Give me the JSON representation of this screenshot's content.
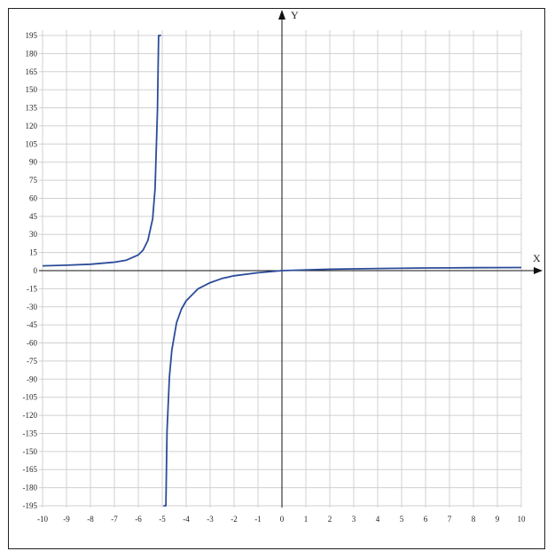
{
  "chart_data": {
    "type": "line",
    "title": "",
    "xlabel": "X",
    "ylabel": "Y",
    "xlim": [
      -10,
      10
    ],
    "ylim": [
      -195,
      195
    ],
    "grid": true,
    "x_ticks": [
      -10,
      -9,
      -8,
      -7,
      -6,
      -5,
      -4,
      -3,
      -2,
      -1,
      0,
      1,
      2,
      3,
      4,
      5,
      6,
      7,
      8,
      9,
      10
    ],
    "x_tick_labels": [
      "-10",
      "-9",
      "-8",
      "-7",
      "-6",
      "-5",
      "-4",
      "-3",
      "-2",
      "-1",
      "0",
      "1",
      "2",
      "3",
      "4",
      "5",
      "6",
      "7",
      "8",
      "9",
      "10"
    ],
    "y_ticks": [
      -195,
      -180,
      -165,
      -150,
      -135,
      -120,
      -105,
      -90,
      -75,
      -60,
      -45,
      -30,
      -15,
      0,
      15,
      30,
      45,
      60,
      75,
      90,
      105,
      120,
      135,
      150,
      165,
      180,
      195
    ],
    "y_tick_labels": [
      "-195",
      "-180",
      "-165",
      "-150",
      "-135",
      "-120",
      "-105",
      "-90",
      "-75",
      "-60",
      "-45",
      "-30",
      "-15",
      "0",
      "15",
      "30",
      "45",
      "60",
      "75",
      "90",
      "105",
      "120",
      "135",
      "150",
      "165",
      "180",
      "195"
    ],
    "vertical_asymptote_x": -5,
    "series": [
      {
        "color": "#2b4c9a",
        "branches": [
          {
            "x": [
              -10,
              -9,
              -8,
              -7,
              -6.5,
              -6,
              -5.8,
              -5.6,
              -5.4,
              -5.3,
              -5.2,
              -5.15,
              -5.1,
              -5.07,
              -5.05
            ],
            "y": [
              4,
              4.5,
              5.3,
              7,
              8.7,
              13,
              17,
              25,
              43,
              68,
              133,
              195,
              195,
              195,
              195
            ]
          },
          {
            "x": [
              -4.95,
              -4.93,
              -4.9,
              -4.85,
              -4.8,
              -4.7,
              -4.6,
              -4.4,
              -4.2,
              -4,
              -3.5,
              -3,
              -2.5,
              -2,
              -1,
              0,
              2,
              4,
              6,
              8,
              10
            ],
            "y": [
              -195,
              -195,
              -195,
              -195,
              -133,
              -88,
              -66,
              -43,
              -32,
              -25,
              -15,
              -10,
              -6.5,
              -4.3,
              -1.8,
              0,
              1.2,
              1.8,
              2.2,
              2.4,
              2.6
            ]
          }
        ]
      }
    ]
  }
}
